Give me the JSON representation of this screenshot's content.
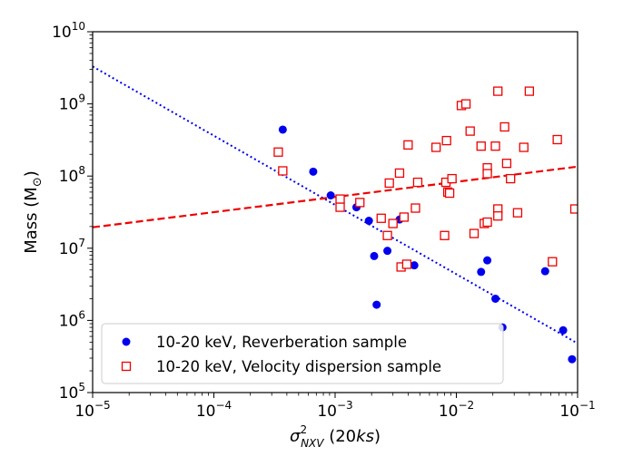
{
  "chart_data": {
    "type": "scatter",
    "xscale": "log",
    "yscale": "log",
    "xlim": [
      1e-05,
      0.1
    ],
    "ylim": [
      100000,
      10000000000
    ],
    "xlabel": {
      "base": "σ",
      "sup": "2",
      "sub": "NXV",
      "rest": " (20",
      "italic": "ks",
      "close": ")"
    },
    "ylabel": {
      "text": "Mass (M",
      "sub": "⊙",
      "close": ")"
    },
    "xticks": [
      {
        "value": 1e-05,
        "base": "10",
        "exp": "−5"
      },
      {
        "value": 0.0001,
        "base": "10",
        "exp": "−4"
      },
      {
        "value": 0.001,
        "base": "10",
        "exp": "−3"
      },
      {
        "value": 0.01,
        "base": "10",
        "exp": "−2"
      },
      {
        "value": 0.1,
        "base": "10",
        "exp": "−1"
      }
    ],
    "yticks": [
      {
        "value": 100000,
        "base": "10",
        "exp": "5"
      },
      {
        "value": 1000000,
        "base": "10",
        "exp": "6"
      },
      {
        "value": 10000000,
        "base": "10",
        "exp": "7"
      },
      {
        "value": 100000000,
        "base": "10",
        "exp": "8"
      },
      {
        "value": 1000000000,
        "base": "10",
        "exp": "9"
      },
      {
        "value": 10000000000,
        "base": "10",
        "exp": "10"
      }
    ],
    "colors": {
      "reverberation": "#0000ee",
      "dispersion": "#ee0000"
    },
    "legend": {
      "position": "lower-left",
      "entries": [
        {
          "label": "10-20 keV, Reverberation sample",
          "marker": "filled-circle"
        },
        {
          "label": "10-20 keV, Velocity dispersion sample",
          "marker": "open-square"
        }
      ]
    },
    "series": [
      {
        "name": "10-20 keV, Reverberation sample",
        "marker": "filled-circle",
        "color": "#0000ee",
        "points": [
          [
            0.00037,
            440000000
          ],
          [
            0.00066,
            115000000
          ],
          [
            0.00092,
            54000000
          ],
          [
            0.0015,
            37000000
          ],
          [
            0.0019,
            24000000
          ],
          [
            0.0021,
            7800000
          ],
          [
            0.0022,
            1650000
          ],
          [
            0.0027,
            9200000
          ],
          [
            0.0034,
            25000000
          ],
          [
            0.0045,
            5800000
          ],
          [
            0.016,
            4700000
          ],
          [
            0.018,
            6800000
          ],
          [
            0.021,
            2000000
          ],
          [
            0.024,
            800000
          ],
          [
            0.054,
            4800000
          ],
          [
            0.076,
            730000
          ],
          [
            0.09,
            290000
          ]
        ]
      },
      {
        "name": "10-20 keV, Velocity dispersion sample",
        "marker": "open-square",
        "color": "#ee0000",
        "points": [
          [
            0.00034,
            215000000
          ],
          [
            0.00037,
            118000000
          ],
          [
            0.0011,
            48000000
          ],
          [
            0.0011,
            37000000
          ],
          [
            0.0016,
            43000000
          ],
          [
            0.0024,
            26000000
          ],
          [
            0.0027,
            15000000
          ],
          [
            0.0028,
            80000000
          ],
          [
            0.003,
            22000000
          ],
          [
            0.0034,
            110000000
          ],
          [
            0.0035,
            5500000
          ],
          [
            0.0037,
            27000000
          ],
          [
            0.0039,
            6000000
          ],
          [
            0.004,
            270000000
          ],
          [
            0.0046,
            36000000
          ],
          [
            0.0048,
            82000000
          ],
          [
            0.0068,
            250000000
          ],
          [
            0.008,
            15000000
          ],
          [
            0.0082,
            82000000
          ],
          [
            0.0083,
            310000000
          ],
          [
            0.0085,
            60000000
          ],
          [
            0.0088,
            58000000
          ],
          [
            0.0092,
            92000000
          ],
          [
            0.011,
            950000000
          ],
          [
            0.012,
            1000000000
          ],
          [
            0.013,
            420000000
          ],
          [
            0.014,
            16000000
          ],
          [
            0.016,
            260000000
          ],
          [
            0.017,
            22000000
          ],
          [
            0.018,
            23000000
          ],
          [
            0.018,
            130000000
          ],
          [
            0.018,
            108000000
          ],
          [
            0.021,
            260000000
          ],
          [
            0.022,
            35000000
          ],
          [
            0.022,
            28000000
          ],
          [
            0.022,
            1500000000
          ],
          [
            0.025,
            480000000
          ],
          [
            0.026,
            150000000
          ],
          [
            0.028,
            92000000
          ],
          [
            0.032,
            31000000
          ],
          [
            0.036,
            250000000
          ],
          [
            0.04,
            1500000000
          ],
          [
            0.062,
            6500000
          ],
          [
            0.068,
            320000000
          ],
          [
            0.095,
            35000000
          ]
        ]
      }
    ],
    "fit_lines": [
      {
        "name": "reverberation-fit",
        "style": "dotted",
        "color": "#0000ee",
        "x": [
          1e-05,
          0.1
        ],
        "y": [
          3300000000,
          480000
        ]
      },
      {
        "name": "dispersion-fit",
        "style": "dashed",
        "color": "#ee0000",
        "x": [
          1e-05,
          0.1
        ],
        "y": [
          19500000,
          135000000
        ]
      }
    ]
  }
}
